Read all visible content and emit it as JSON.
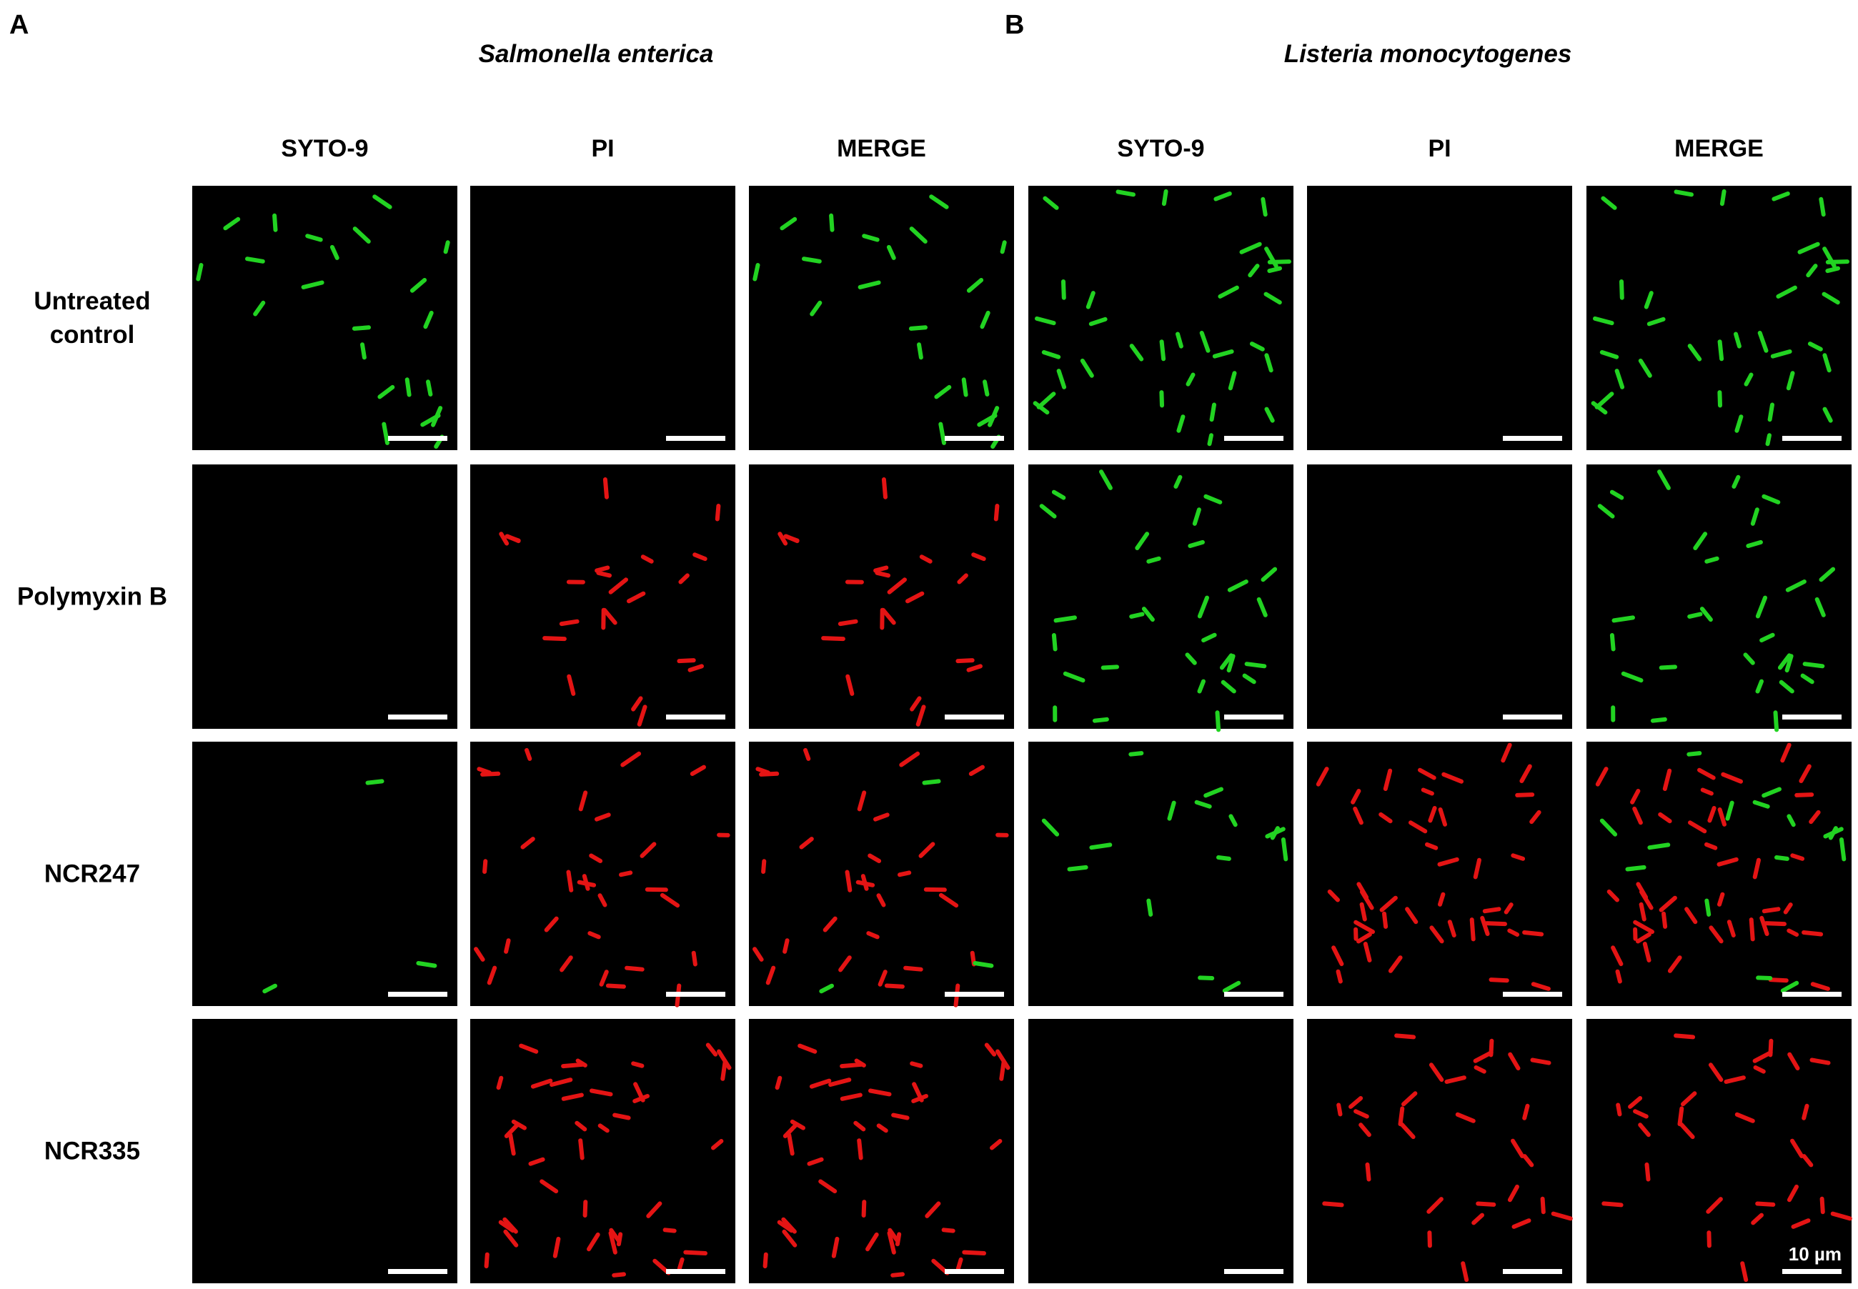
{
  "panels": [
    {
      "label": "A",
      "title": "Salmonella enterica",
      "columns": [
        "SYTO-9",
        "PI",
        "MERGE"
      ]
    },
    {
      "label": "B",
      "title": "Listeria monocytogenes",
      "columns": [
        "SYTO-9",
        "PI",
        "MERGE"
      ]
    }
  ],
  "rows": [
    "Untreated control",
    "Polymyxin B",
    "NCR247",
    "NCR335"
  ],
  "scale_label": "10 µm"
}
